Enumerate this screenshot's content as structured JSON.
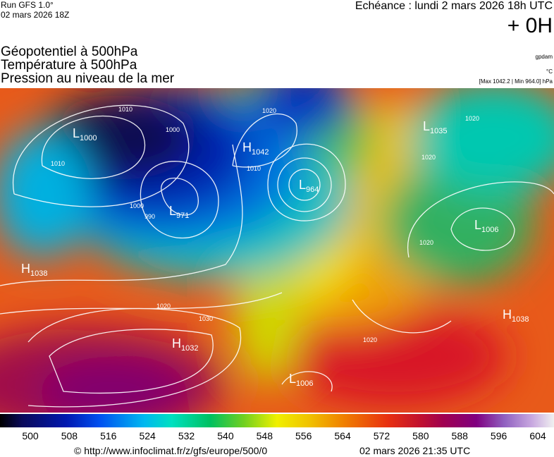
{
  "header": {
    "run": "Run GFS 1.0°",
    "run_date": "02 mars 2026 18Z",
    "echeance": "Echéance : lundi 2 mars 2026 18h UTC",
    "offset": "+ 0H",
    "fields": [
      "Géopotentiel à 500hPa",
      "Température à 500hPa",
      "Pression au niveau de la mer"
    ],
    "unit_geo": "gpdam",
    "unit_temp": "°C",
    "extremes": "[Max 1042.2 | Min 964.0] hPa"
  },
  "centers": [
    {
      "kind": "L",
      "value": 1000
    },
    {
      "kind": "H",
      "value": 1042
    },
    {
      "kind": "L",
      "value": 964
    },
    {
      "kind": "L",
      "value": 971
    },
    {
      "kind": "L",
      "value": 1035
    },
    {
      "kind": "L",
      "value": 1006
    },
    {
      "kind": "H",
      "value": 1038
    },
    {
      "kind": "H",
      "value": 1032
    },
    {
      "kind": "L",
      "value": 1006
    },
    {
      "kind": "H",
      "value": 1038
    }
  ],
  "isobar_labels": [
    1010,
    1000,
    990,
    1010,
    1000,
    1020,
    1010,
    1020,
    1030,
    1020,
    1020,
    1020,
    1020
  ],
  "colorbar": {
    "labels": [
      500,
      508,
      516,
      524,
      532,
      540,
      548,
      556,
      564,
      572,
      580,
      588,
      596,
      604
    ]
  },
  "footer": {
    "source": "© http://www.infoclimat.fr/z/gfs/europe/500/0",
    "generated": "02 mars 2026 21:35 UTC"
  }
}
